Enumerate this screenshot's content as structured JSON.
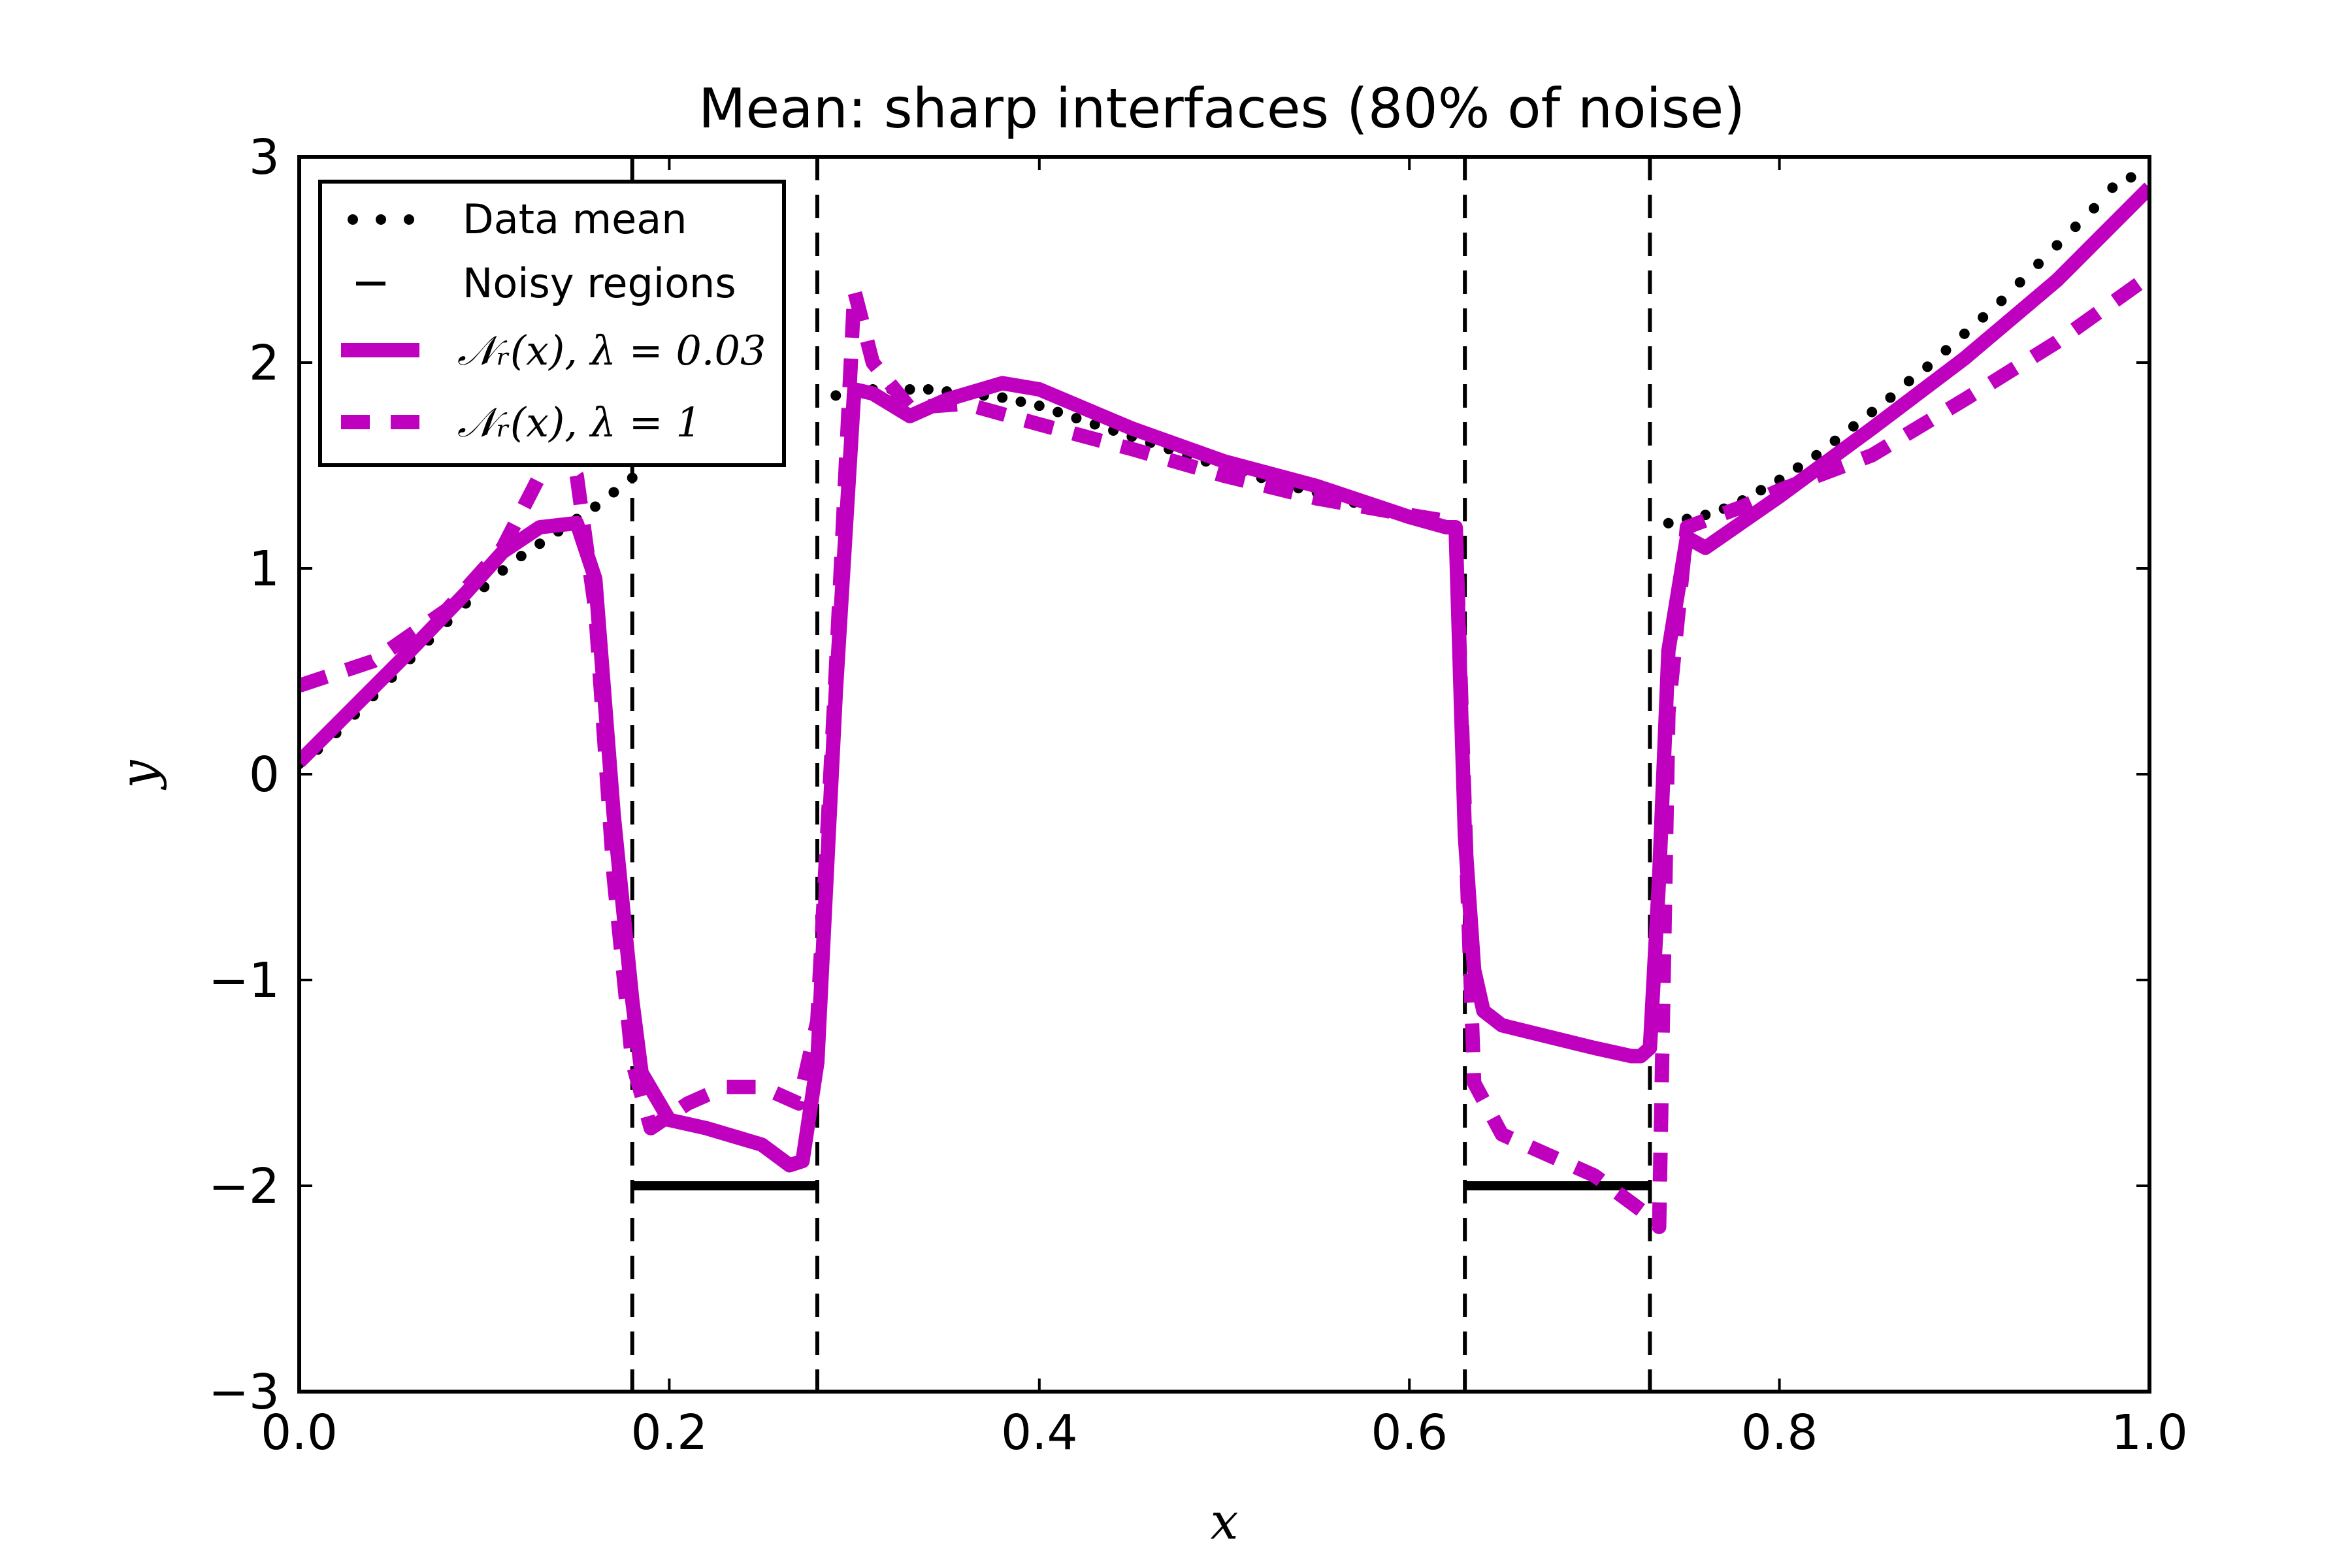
{
  "chart_data": {
    "type": "line",
    "title": "Mean: sharp interfaces (80% of noise)",
    "xlabel": "x",
    "ylabel": "y",
    "xlim": [
      0.0,
      1.0
    ],
    "ylim": [
      -3,
      3
    ],
    "grid": false,
    "legend_position": "top-left",
    "x_ticks": [
      0.0,
      0.2,
      0.4,
      0.6,
      0.8,
      1.0
    ],
    "x_tick_labels": [
      "0.0",
      "0.2",
      "0.4",
      "0.6",
      "0.8",
      "1.0"
    ],
    "y_ticks": [
      3,
      2,
      1,
      0,
      -1,
      -2,
      -3
    ],
    "y_tick_labels": [
      "3",
      "2",
      "1",
      "0",
      "−1",
      "−2",
      "−3"
    ],
    "noisy_regions": [
      [
        0.18,
        0.28
      ],
      [
        0.63,
        0.73
      ]
    ],
    "noisy_region_level": -2,
    "series": [
      {
        "name": "Data mean",
        "legend_label": "Data mean",
        "style": "dotted",
        "color": "#000000",
        "x": [
          0.0,
          0.01,
          0.02,
          0.03,
          0.04,
          0.05,
          0.06,
          0.07,
          0.08,
          0.09,
          0.1,
          0.11,
          0.12,
          0.13,
          0.14,
          0.15,
          0.16,
          0.17,
          0.18,
          0.29,
          0.3,
          0.31,
          0.32,
          0.33,
          0.34,
          0.35,
          0.36,
          0.37,
          0.38,
          0.39,
          0.4,
          0.41,
          0.42,
          0.43,
          0.44,
          0.45,
          0.46,
          0.47,
          0.48,
          0.49,
          0.5,
          0.51,
          0.52,
          0.53,
          0.54,
          0.55,
          0.56,
          0.57,
          0.58,
          0.59,
          0.6,
          0.61,
          0.62,
          0.74,
          0.75,
          0.76,
          0.77,
          0.78,
          0.79,
          0.8,
          0.81,
          0.82,
          0.83,
          0.84,
          0.85,
          0.86,
          0.87,
          0.88,
          0.89,
          0.9,
          0.91,
          0.92,
          0.93,
          0.94,
          0.95,
          0.96,
          0.97,
          0.98,
          0.99
        ],
        "y": [
          0.05,
          0.12,
          0.2,
          0.29,
          0.38,
          0.47,
          0.56,
          0.65,
          0.74,
          0.83,
          0.91,
          0.99,
          1.06,
          1.12,
          1.18,
          1.24,
          1.3,
          1.37,
          1.44,
          1.84,
          1.86,
          1.87,
          1.87,
          1.87,
          1.87,
          1.86,
          1.85,
          1.84,
          1.83,
          1.81,
          1.79,
          1.76,
          1.73,
          1.7,
          1.67,
          1.64,
          1.61,
          1.58,
          1.55,
          1.52,
          1.5,
          1.47,
          1.44,
          1.42,
          1.39,
          1.37,
          1.34,
          1.32,
          1.29,
          1.27,
          1.25,
          1.22,
          1.2,
          1.22,
          1.24,
          1.26,
          1.29,
          1.33,
          1.38,
          1.43,
          1.49,
          1.55,
          1.62,
          1.69,
          1.76,
          1.83,
          1.91,
          1.98,
          2.06,
          2.14,
          2.22,
          2.3,
          2.39,
          2.48,
          2.57,
          2.66,
          2.75,
          2.85,
          2.9
        ]
      },
      {
        "name": "Noisy regions",
        "legend_label": "Noisy regions",
        "style": "dashed",
        "color": "#000000"
      },
      {
        "name": "N_r(x), lambda=0.03",
        "legend_label": "𝒩ᵣ(x),  λ = 0.03",
        "style": "solid",
        "color": "#bf00bf",
        "x": [
          0.0,
          0.03,
          0.06,
          0.09,
          0.11,
          0.13,
          0.15,
          0.16,
          0.17,
          0.18,
          0.185,
          0.2,
          0.22,
          0.25,
          0.265,
          0.272,
          0.28,
          0.29,
          0.3,
          0.31,
          0.33,
          0.35,
          0.38,
          0.4,
          0.45,
          0.5,
          0.55,
          0.6,
          0.62,
          0.625,
          0.63,
          0.635,
          0.64,
          0.65,
          0.7,
          0.72,
          0.725,
          0.73,
          0.735,
          0.74,
          0.75,
          0.76,
          0.8,
          0.85,
          0.9,
          0.95,
          1.0
        ],
        "y": [
          0.06,
          0.33,
          0.6,
          0.88,
          1.08,
          1.2,
          1.22,
          0.95,
          -0.2,
          -1.1,
          -1.45,
          -1.68,
          -1.72,
          -1.8,
          -1.9,
          -1.88,
          -1.4,
          0.4,
          1.87,
          1.85,
          1.74,
          1.82,
          1.9,
          1.87,
          1.68,
          1.52,
          1.4,
          1.25,
          1.2,
          1.2,
          -0.3,
          -0.95,
          -1.15,
          -1.22,
          -1.33,
          -1.37,
          -1.37,
          -1.33,
          -0.5,
          0.6,
          1.15,
          1.1,
          1.35,
          1.68,
          2.02,
          2.4,
          2.85
        ]
      },
      {
        "name": "N_r(x), lambda=1",
        "legend_label": "𝒩ᵣ(x),  λ = 1",
        "style": "dashed",
        "color": "#bf00bf",
        "x": [
          0.0,
          0.04,
          0.08,
          0.11,
          0.13,
          0.14,
          0.15,
          0.16,
          0.17,
          0.18,
          0.19,
          0.21,
          0.23,
          0.25,
          0.27,
          0.28,
          0.29,
          0.3,
          0.31,
          0.33,
          0.36,
          0.4,
          0.45,
          0.5,
          0.55,
          0.6,
          0.62,
          0.625,
          0.63,
          0.635,
          0.65,
          0.7,
          0.73,
          0.735,
          0.74,
          0.75,
          0.78,
          0.8,
          0.85,
          0.9,
          0.95,
          1.0
        ],
        "y": [
          0.43,
          0.55,
          0.8,
          1.1,
          1.45,
          1.58,
          1.45,
          0.8,
          -0.5,
          -1.4,
          -1.72,
          -1.6,
          -1.52,
          -1.52,
          -1.6,
          -1.2,
          0.5,
          2.35,
          2.0,
          1.78,
          1.8,
          1.7,
          1.58,
          1.45,
          1.34,
          1.26,
          1.23,
          1.22,
          -0.2,
          -1.5,
          -1.75,
          -1.95,
          -2.15,
          -2.2,
          0.3,
          1.2,
          1.3,
          1.38,
          1.55,
          1.82,
          2.1,
          2.42
        ]
      }
    ]
  }
}
